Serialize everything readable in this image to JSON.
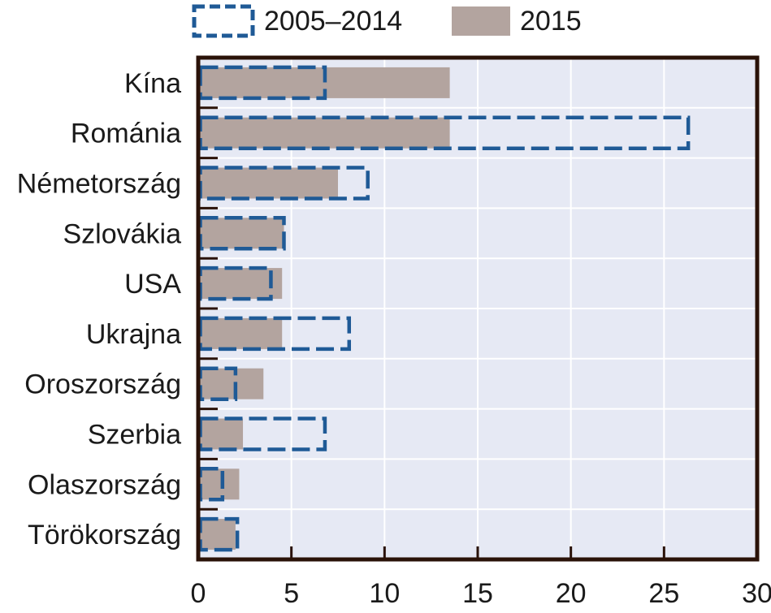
{
  "chart_data": {
    "type": "bar",
    "orientation": "horizontal",
    "title": "",
    "xlabel": "",
    "ylabel": "",
    "xlim": [
      0,
      30
    ],
    "x_ticks": [
      "0",
      "5",
      "10",
      "15",
      "20",
      "25",
      "30"
    ],
    "categories": [
      "Kína",
      "Románia",
      "Németország",
      "Szlovákia",
      "USA",
      "Ukrajna",
      "Oroszország",
      "Szerbia",
      "Olaszország",
      "Törökország"
    ],
    "series": [
      {
        "name": "2005–2014",
        "style": "dashed-outline",
        "color": "#1f5a96",
        "values": [
          6.8,
          26.3,
          9.1,
          4.6,
          3.9,
          8.1,
          2.0,
          6.8,
          1.3,
          2.1
        ]
      },
      {
        "name": "2015",
        "style": "filled",
        "color": "#b3a49f",
        "values": [
          13.5,
          13.5,
          7.5,
          4.6,
          4.5,
          4.5,
          3.5,
          2.4,
          2.2,
          2.0
        ]
      }
    ],
    "legend": {
      "placement": "top",
      "items": [
        "2005–2014",
        "2015"
      ]
    },
    "grid": true,
    "plot_background": "#e6e9f4",
    "frame_color": "#2a1208"
  }
}
